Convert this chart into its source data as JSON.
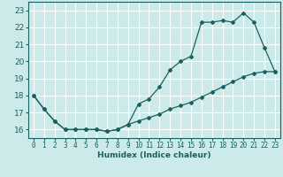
{
  "xlabel": "Humidex (Indice chaleur)",
  "ylabel": "",
  "bg_color": "#cceaea",
  "grid_color": "#ffffff",
  "line_color": "#1a6060",
  "xlim": [
    -0.5,
    23.5
  ],
  "ylim": [
    15.5,
    23.5
  ],
  "xticks": [
    0,
    1,
    2,
    3,
    4,
    5,
    6,
    7,
    8,
    9,
    10,
    11,
    12,
    13,
    14,
    15,
    16,
    17,
    18,
    19,
    20,
    21,
    22,
    23
  ],
  "yticks": [
    16,
    17,
    18,
    19,
    20,
    21,
    22,
    23
  ],
  "line1_x": [
    0,
    1,
    2,
    3,
    4,
    5,
    6,
    7,
    8,
    9,
    10,
    11,
    12,
    13,
    14,
    15,
    16,
    17,
    18,
    19,
    20,
    21,
    22,
    23
  ],
  "line1_y": [
    18.0,
    17.2,
    16.5,
    16.0,
    16.0,
    16.0,
    16.0,
    15.9,
    16.0,
    16.3,
    17.5,
    17.8,
    18.5,
    19.5,
    20.0,
    20.3,
    22.3,
    22.3,
    22.4,
    22.3,
    22.85,
    22.3,
    20.8,
    19.4
  ],
  "line2_x": [
    0,
    1,
    2,
    3,
    4,
    5,
    6,
    7,
    8,
    9,
    10,
    11,
    12,
    13,
    14,
    15,
    16,
    17,
    18,
    19,
    20,
    21,
    22,
    23
  ],
  "line2_y": [
    18.0,
    17.2,
    16.5,
    16.0,
    16.0,
    16.0,
    16.0,
    15.9,
    16.0,
    16.3,
    16.5,
    16.7,
    16.9,
    17.2,
    17.4,
    17.6,
    17.9,
    18.2,
    18.5,
    18.8,
    19.1,
    19.3,
    19.4,
    19.4
  ]
}
